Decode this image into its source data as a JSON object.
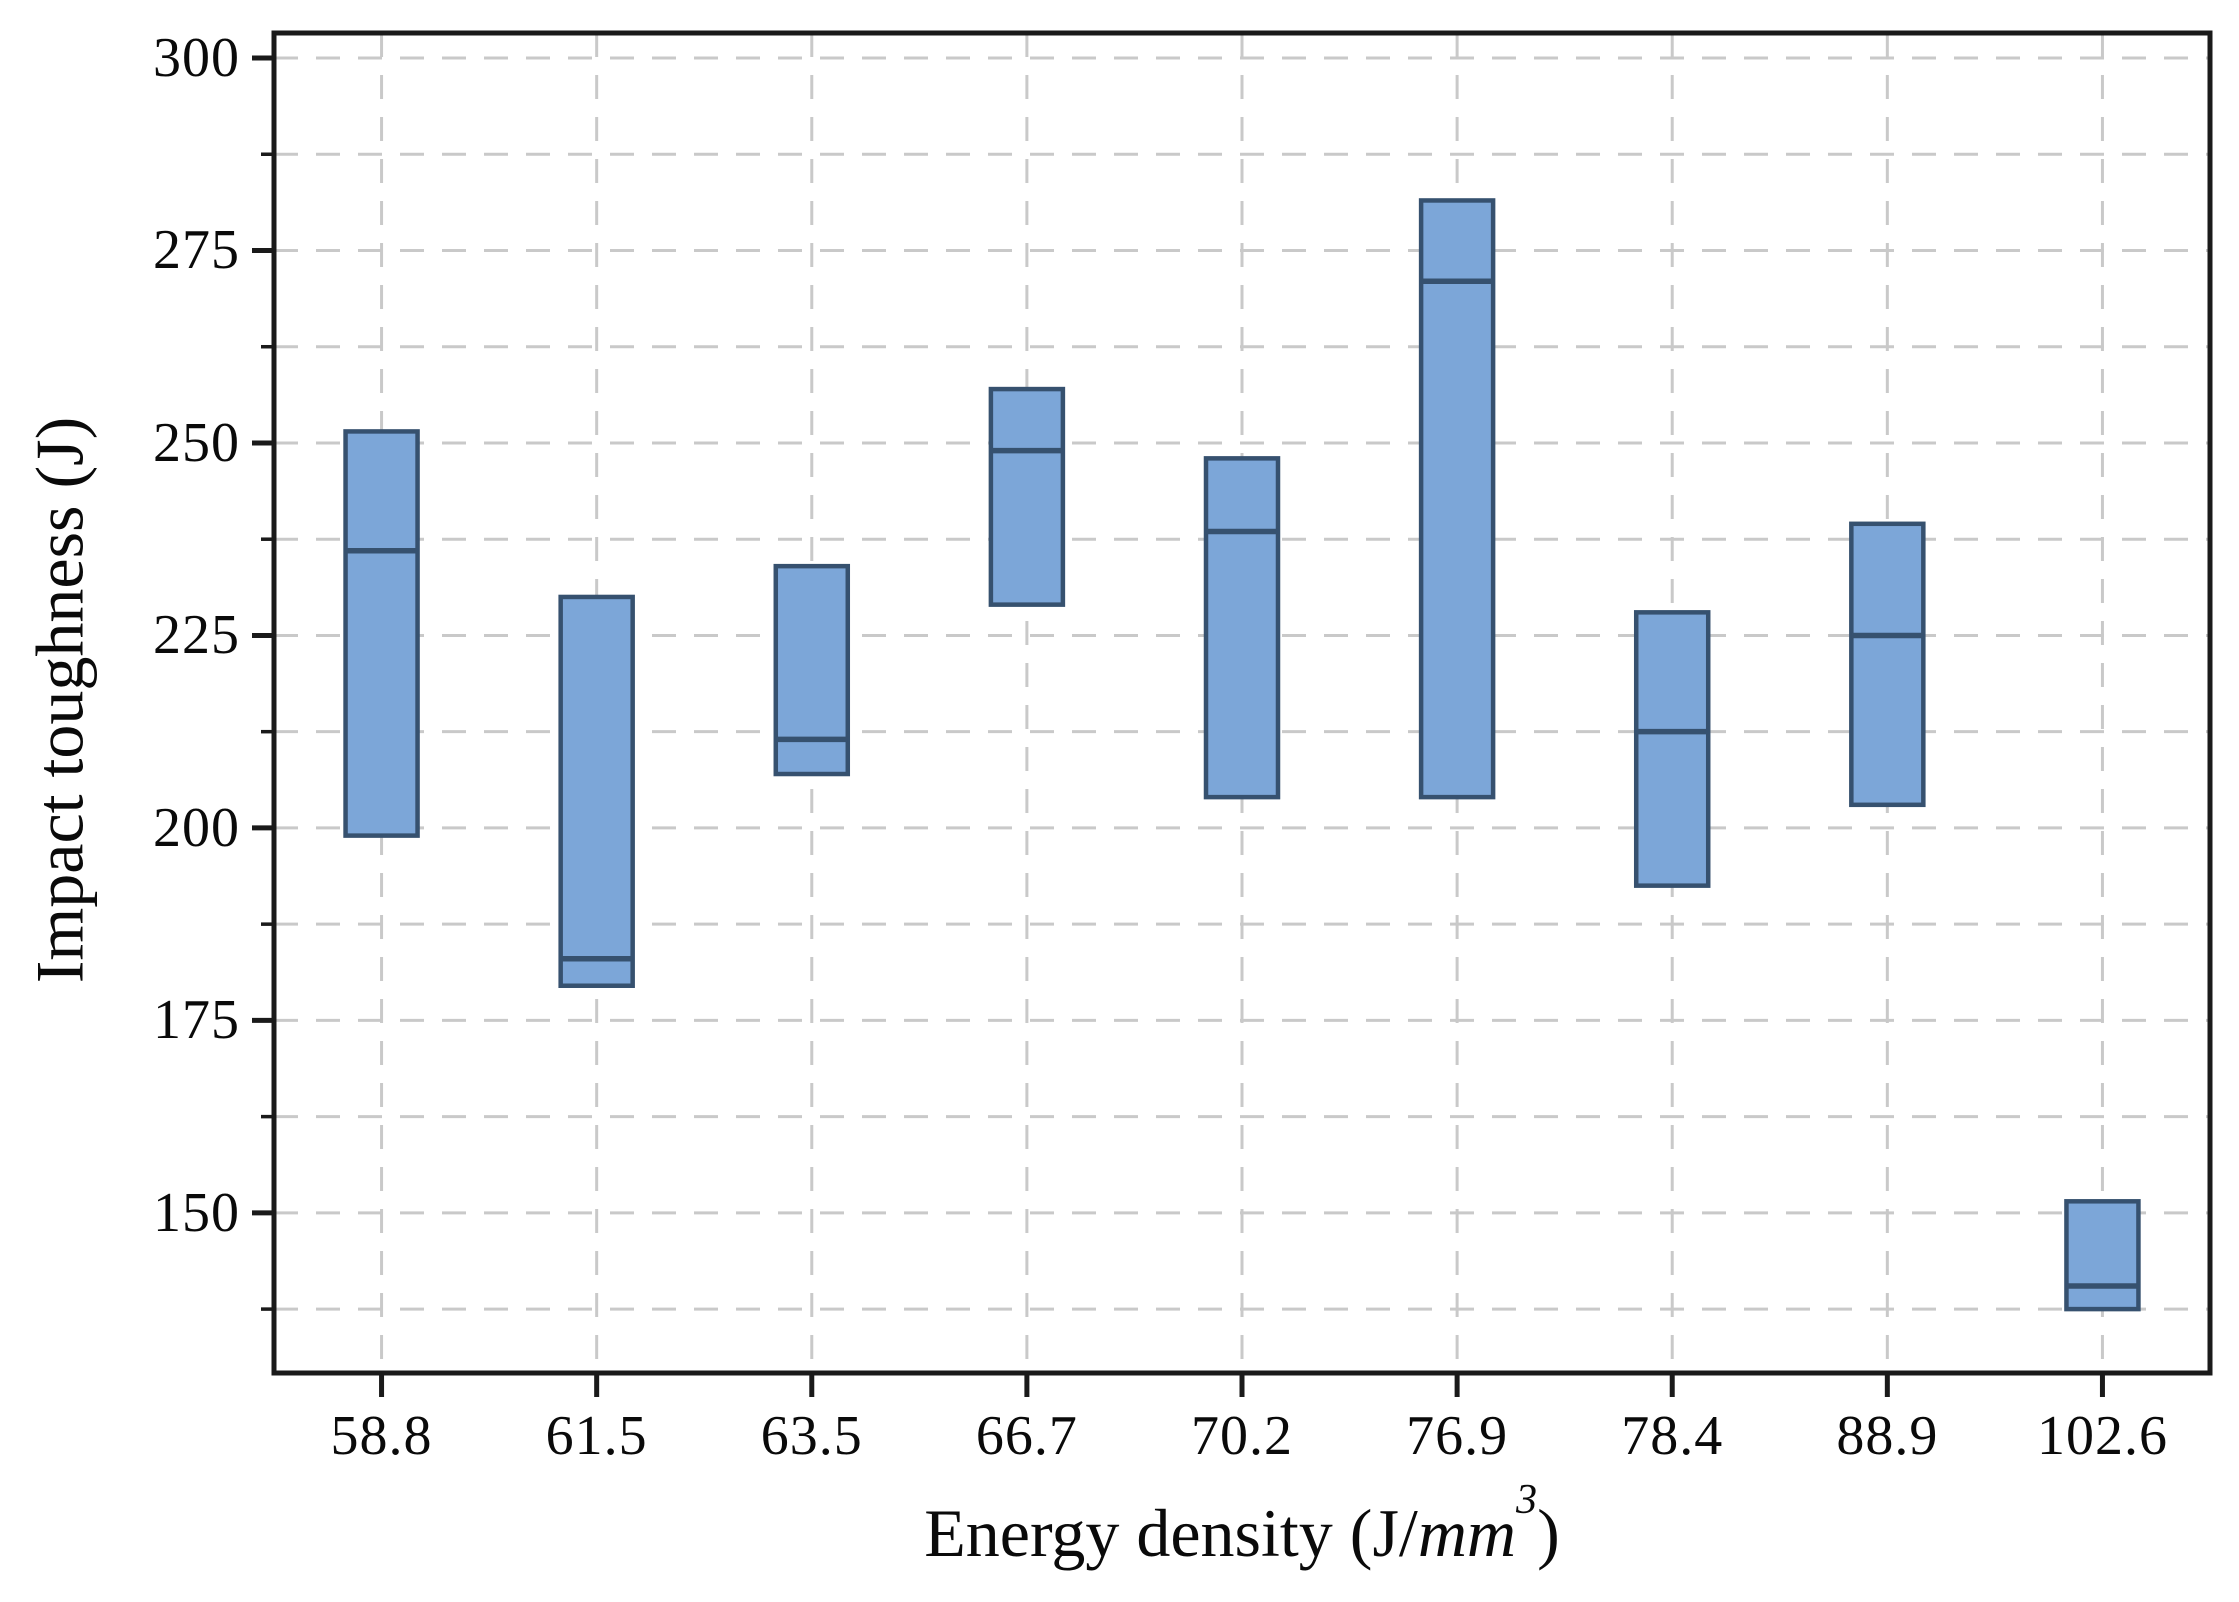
{
  "figure": {
    "background": "#ffffff"
  },
  "chart_data": {
    "type": "boxplot",
    "title": "",
    "ylabel": "Impact toughness (J)",
    "xlabel": {
      "prefix": "Energy density (J/",
      "italic": "mm",
      "superscript": "3",
      "suffix": ")",
      "plain_text": "Energy density (J/mm3)"
    },
    "categories": [
      "58.8",
      "61.5",
      "63.5",
      "66.7",
      "70.2",
      "76.9",
      "78.4",
      "88.9",
      "102.6"
    ],
    "boxes": [
      {
        "category": "58.8",
        "min": 199,
        "median": 236,
        "max": 251.5
      },
      {
        "category": "61.5",
        "min": 179.5,
        "median": 183,
        "max": 230
      },
      {
        "category": "63.5",
        "min": 207,
        "median": 211.5,
        "max": 234
      },
      {
        "category": "66.7",
        "min": 229,
        "median": 249,
        "max": 257
      },
      {
        "category": "70.2",
        "min": 204,
        "median": 238.5,
        "max": 248
      },
      {
        "category": "76.9",
        "min": 204,
        "median": 271,
        "max": 281.5
      },
      {
        "category": "78.4",
        "min": 192.5,
        "median": 212.5,
        "max": 228
      },
      {
        "category": "88.9",
        "min": 203,
        "median": 225,
        "max": 239.5
      },
      {
        "category": "102.6",
        "min": 137.5,
        "median": 140.5,
        "max": 151.5
      }
    ],
    "y_axis": {
      "major_ticks": [
        150,
        175,
        200,
        225,
        250,
        275,
        300
      ],
      "minor_tick_interval": 12.5,
      "gridline_interval": 12.5,
      "gridline_min": 137.5,
      "gridline_max": 300,
      "range": [
        129.2,
        303.25
      ]
    },
    "x_axis": {
      "gridlines_at_categories": true
    },
    "legend": "none",
    "grid": "dashed",
    "colors": {
      "box_fill": "#7CA6D8",
      "box_border": "#36516F",
      "median_line": "#36516F",
      "grid_line": "#c9c9c9",
      "axis_line": "#1a1a1a",
      "text": "#0a0a0a"
    }
  }
}
